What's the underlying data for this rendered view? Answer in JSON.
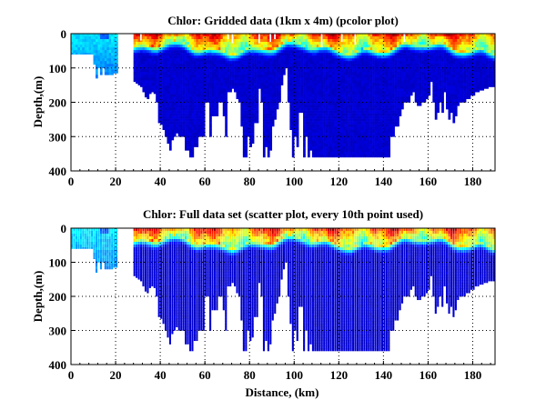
{
  "chart_data": [
    {
      "type": "heatmap",
      "title": "Chlor: Gridded data (1km x 4m) (pcolor plot)",
      "xlabel": "",
      "ylabel": "Depth,(m)",
      "xlim": [
        0,
        190
      ],
      "ylim": [
        0,
        400
      ],
      "y_reversed": true,
      "grid": true,
      "xticks": [
        0,
        20,
        40,
        60,
        80,
        100,
        120,
        140,
        160,
        180
      ],
      "yticks": [
        0,
        100,
        200,
        300,
        400
      ],
      "colormap": "jet",
      "style": "pcolor"
    },
    {
      "type": "scatter",
      "title": "Chlor: Full data set (scatter plot, every 10th point used)",
      "xlabel": "Distance, (km)",
      "ylabel": "Depth,(m)",
      "xlim": [
        0,
        190
      ],
      "ylim": [
        0,
        400
      ],
      "y_reversed": true,
      "grid": true,
      "xticks": [
        0,
        20,
        40,
        60,
        80,
        100,
        120,
        140,
        160,
        180
      ],
      "yticks": [
        0,
        100,
        200,
        300,
        400
      ],
      "colormap": "jet",
      "style": "scatter"
    }
  ],
  "profile_depths_m": [
    [
      0,
      60
    ],
    [
      2,
      60
    ],
    [
      4,
      60
    ],
    [
      6,
      60
    ],
    [
      8,
      60
    ],
    [
      10,
      60
    ],
    [
      11,
      90
    ],
    [
      12,
      130
    ],
    [
      13,
      100
    ],
    [
      14,
      120
    ],
    [
      15,
      100
    ],
    [
      16,
      120
    ],
    [
      17,
      120
    ],
    [
      18,
      120
    ],
    [
      19,
      120
    ],
    [
      20,
      115
    ],
    [
      29,
      140
    ],
    [
      30,
      145
    ],
    [
      31,
      150
    ],
    [
      32,
      155
    ],
    [
      33,
      170
    ],
    [
      34,
      185
    ],
    [
      35,
      190
    ],
    [
      36,
      175
    ],
    [
      37,
      170
    ],
    [
      38,
      175
    ],
    [
      39,
      200
    ],
    [
      40,
      260
    ],
    [
      41,
      265
    ],
    [
      42,
      280
    ],
    [
      43,
      300
    ],
    [
      44,
      320
    ],
    [
      45,
      340
    ],
    [
      46,
      310
    ],
    [
      47,
      300
    ],
    [
      48,
      290
    ],
    [
      49,
      300
    ],
    [
      50,
      300
    ],
    [
      52,
      340
    ],
    [
      54,
      360
    ],
    [
      56,
      330
    ],
    [
      58,
      300
    ],
    [
      60,
      300
    ],
    [
      61,
      200
    ],
    [
      62,
      200
    ],
    [
      63,
      300
    ],
    [
      64,
      240
    ],
    [
      65,
      240
    ],
    [
      66,
      240
    ],
    [
      67,
      200
    ],
    [
      68,
      200
    ],
    [
      69,
      240
    ],
    [
      70,
      300
    ],
    [
      71,
      170
    ],
    [
      72,
      170
    ],
    [
      73,
      160
    ],
    [
      74,
      170
    ],
    [
      75,
      190
    ],
    [
      76,
      200
    ],
    [
      77,
      270
    ],
    [
      78,
      360
    ],
    [
      79,
      360
    ],
    [
      80,
      300
    ],
    [
      81,
      330
    ],
    [
      82,
      320
    ],
    [
      83,
      260
    ],
    [
      84,
      260
    ],
    [
      85,
      160
    ],
    [
      86,
      200
    ],
    [
      87,
      360
    ],
    [
      88,
      330
    ],
    [
      89,
      360
    ],
    [
      90,
      340
    ],
    [
      91,
      270
    ],
    [
      92,
      250
    ],
    [
      93,
      220
    ],
    [
      94,
      200
    ],
    [
      95,
      150
    ],
    [
      96,
      120
    ],
    [
      97,
      100
    ],
    [
      98,
      200
    ],
    [
      99,
      280
    ],
    [
      100,
      360
    ],
    [
      101,
      300
    ],
    [
      102,
      330
    ],
    [
      103,
      230
    ],
    [
      104,
      230
    ],
    [
      105,
      360
    ],
    [
      106,
      300
    ],
    [
      107,
      360
    ],
    [
      108,
      340
    ],
    [
      109,
      360
    ],
    [
      110,
      360
    ],
    [
      112,
      360
    ],
    [
      114,
      360
    ],
    [
      116,
      360
    ],
    [
      118,
      360
    ],
    [
      120,
      360
    ],
    [
      122,
      360
    ],
    [
      124,
      360
    ],
    [
      126,
      360
    ],
    [
      128,
      360
    ],
    [
      130,
      360
    ],
    [
      132,
      360
    ],
    [
      134,
      360
    ],
    [
      136,
      360
    ],
    [
      138,
      360
    ],
    [
      140,
      360
    ],
    [
      142,
      360
    ],
    [
      144,
      300
    ],
    [
      145,
      300
    ],
    [
      146,
      270
    ],
    [
      147,
      270
    ],
    [
      148,
      240
    ],
    [
      149,
      220
    ],
    [
      150,
      200
    ],
    [
      151,
      200
    ],
    [
      152,
      200
    ],
    [
      153,
      180
    ],
    [
      154,
      170
    ],
    [
      155,
      200
    ],
    [
      156,
      210
    ],
    [
      157,
      210
    ],
    [
      158,
      200
    ],
    [
      159,
      200
    ],
    [
      160,
      190
    ],
    [
      161,
      180
    ],
    [
      162,
      140
    ],
    [
      163,
      200
    ],
    [
      164,
      250
    ],
    [
      165,
      230
    ],
    [
      166,
      200
    ],
    [
      167,
      230
    ],
    [
      168,
      170
    ],
    [
      169,
      220
    ],
    [
      170,
      250
    ],
    [
      171,
      230
    ],
    [
      172,
      260
    ],
    [
      173,
      240
    ],
    [
      174,
      210
    ],
    [
      175,
      200
    ],
    [
      176,
      200
    ],
    [
      178,
      190
    ],
    [
      180,
      180
    ],
    [
      182,
      170
    ],
    [
      184,
      165
    ],
    [
      186,
      160
    ],
    [
      188,
      155
    ],
    [
      190,
      155
    ]
  ]
}
